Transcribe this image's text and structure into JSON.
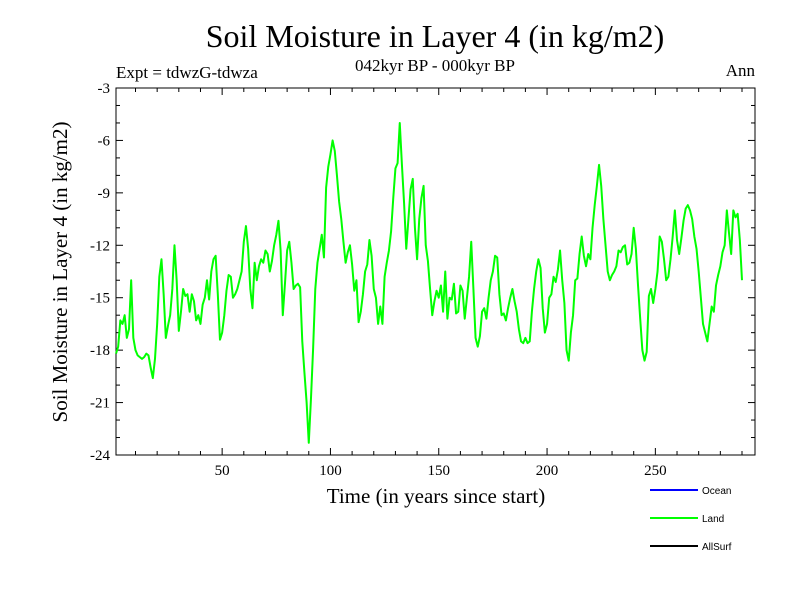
{
  "chart_data": {
    "type": "line",
    "title": "Soil Moisture in Layer 4 (in kg/m2)",
    "subtitle": "042kyr BP - 000kyr BP",
    "experiment_label": "Expt = tdwzG-tdwza",
    "season_label": "Ann",
    "xlabel": "Time (in years since start)",
    "ylabel": "Soil Moisture in Layer 4 (in kg/m2)",
    "xlim": [
      1,
      296
    ],
    "ylim": [
      -24,
      -3
    ],
    "x_ticks": [
      50,
      100,
      150,
      200,
      250
    ],
    "y_ticks": [
      -24,
      -21,
      -18,
      -15,
      -12,
      -9,
      -6,
      -3
    ],
    "grid": false,
    "legend": {
      "placement": "bottom-right",
      "entries": [
        {
          "name": "Ocean",
          "color": "#0000ff"
        },
        {
          "name": "Land",
          "color": "#00ff00"
        },
        {
          "name": "AllSurf",
          "color": "#000000"
        }
      ]
    },
    "series": [
      {
        "name": "Land",
        "color": "#00ff00",
        "x_start": 1,
        "values": [
          -18.2,
          -17.8,
          -16.3,
          -16.5,
          -16.0,
          -17.3,
          -16.8,
          -14.0,
          -17.3,
          -18.0,
          -18.3,
          -18.4,
          -18.5,
          -18.4,
          -18.2,
          -18.3,
          -19.0,
          -19.6,
          -18.5,
          -16.5,
          -13.8,
          -12.8,
          -14.8,
          -17.3,
          -16.6,
          -16.0,
          -14.5,
          -12.0,
          -14.0,
          -16.9,
          -15.8,
          -14.5,
          -14.9,
          -14.8,
          -15.8,
          -14.8,
          -15.2,
          -16.3,
          -16.0,
          -16.5,
          -15.4,
          -15.0,
          -14.0,
          -15.1,
          -13.5,
          -12.8,
          -12.6,
          -14.8,
          -17.4,
          -17.0,
          -16.0,
          -14.6,
          -13.7,
          -13.8,
          -15.0,
          -14.8,
          -14.5,
          -14.0,
          -13.5,
          -11.8,
          -10.9,
          -12.2,
          -14.5,
          -15.6,
          -13.0,
          -14.0,
          -13.2,
          -12.8,
          -13.0,
          -12.3,
          -12.5,
          -13.5,
          -12.9,
          -12.0,
          -11.4,
          -10.6,
          -12.3,
          -16.0,
          -14.2,
          -12.3,
          -11.8,
          -13.0,
          -14.5,
          -14.3,
          -14.2,
          -14.4,
          -17.5,
          -19.3,
          -21.0,
          -23.3,
          -20.8,
          -17.9,
          -14.5,
          -13.0,
          -12.2,
          -11.4,
          -12.7,
          -8.7,
          -7.5,
          -6.8,
          -6.0,
          -6.6,
          -8.0,
          -9.5,
          -10.5,
          -11.8,
          -13.0,
          -12.4,
          -12.0,
          -13.1,
          -14.6,
          -14.0,
          -16.4,
          -15.8,
          -14.8,
          -13.5,
          -13.1,
          -11.7,
          -12.6,
          -14.5,
          -15.0,
          -16.5,
          -15.5,
          -16.5,
          -13.8,
          -13.0,
          -12.3,
          -11.2,
          -9.3,
          -7.6,
          -7.3,
          -5.0,
          -7.4,
          -9.6,
          -12.2,
          -10.5,
          -8.8,
          -8.2,
          -11.0,
          -12.8,
          -10.5,
          -9.3,
          -8.6,
          -12.0,
          -12.9,
          -14.5,
          -16.0,
          -15.2,
          -14.6,
          -15.0,
          -14.3,
          -15.8,
          -13.5,
          -16.2,
          -15.0,
          -15.1,
          -14.2,
          -15.9,
          -15.8,
          -14.3,
          -14.6,
          -16.2,
          -15.0,
          -13.8,
          -11.8,
          -14.5,
          -17.3,
          -17.8,
          -17.2,
          -15.8,
          -15.6,
          -16.2,
          -15.0,
          -14.0,
          -13.5,
          -12.6,
          -12.7,
          -14.8,
          -16.0,
          -15.9,
          -16.3,
          -15.6,
          -15.0,
          -14.5,
          -15.2,
          -15.8,
          -16.8,
          -17.5,
          -17.6,
          -17.3,
          -17.6,
          -17.5,
          -15.8,
          -14.5,
          -13.5,
          -12.8,
          -13.3,
          -15.6,
          -17.0,
          -16.5,
          -15.0,
          -14.8,
          -13.8,
          -14.1,
          -13.4,
          -12.3,
          -14.0,
          -15.3,
          -18.0,
          -18.6,
          -17.0,
          -16.0,
          -14.0,
          -13.9,
          -12.5,
          -11.5,
          -12.6,
          -13.2,
          -12.5,
          -12.8,
          -11.0,
          -9.7,
          -8.6,
          -7.4,
          -8.6,
          -10.5,
          -12.0,
          -13.5,
          -14.0,
          -13.7,
          -13.5,
          -13.2,
          -12.3,
          -12.4,
          -12.1,
          -12.0,
          -13.1,
          -13.0,
          -12.5,
          -11.0,
          -12.2,
          -14.3,
          -16.2,
          -18.0,
          -18.6,
          -18.1,
          -14.9,
          -14.5,
          -15.3,
          -14.5,
          -13.5,
          -11.5,
          -11.8,
          -12.8,
          -14.0,
          -13.8,
          -12.8,
          -11.5,
          -10.0,
          -11.7,
          -12.5,
          -11.6,
          -10.6,
          -9.9,
          -9.7,
          -10.0,
          -10.5,
          -11.5,
          -12.2,
          -13.5,
          -15.0,
          -16.5,
          -17.0,
          -17.5,
          -16.5,
          -15.5,
          -15.8,
          -14.3,
          -13.7,
          -13.2,
          -12.4,
          -12.0,
          -10.0,
          -11.3,
          -12.5,
          -10.0,
          -10.4,
          -10.2,
          -11.7,
          -14.0
        ]
      }
    ]
  }
}
